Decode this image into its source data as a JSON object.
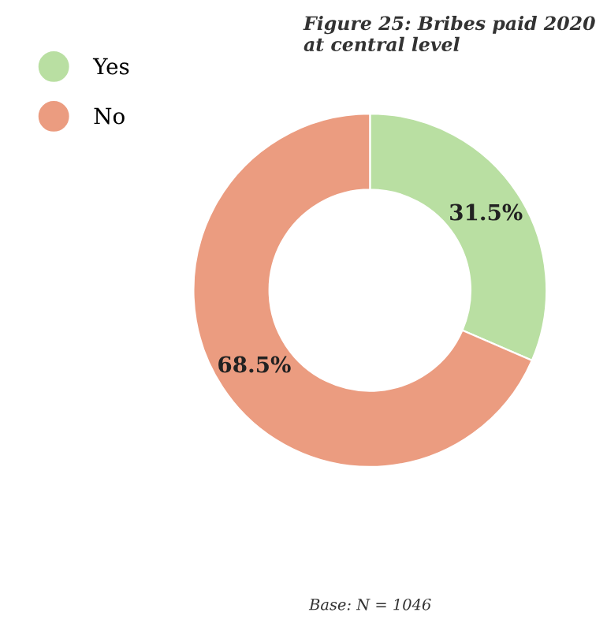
{
  "chart_data": {
    "type": "donut",
    "title": "Figure 25: Bribes paid 2020\nat central level",
    "categories": [
      "Yes",
      "No"
    ],
    "values": [
      31.5,
      68.5
    ],
    "colors": [
      "#b9dfa2",
      "#eb9c80"
    ],
    "value_labels": [
      "31.5%",
      "68.5%"
    ],
    "legend": "top left",
    "annotations": [
      "Base: N = 1046"
    ]
  }
}
